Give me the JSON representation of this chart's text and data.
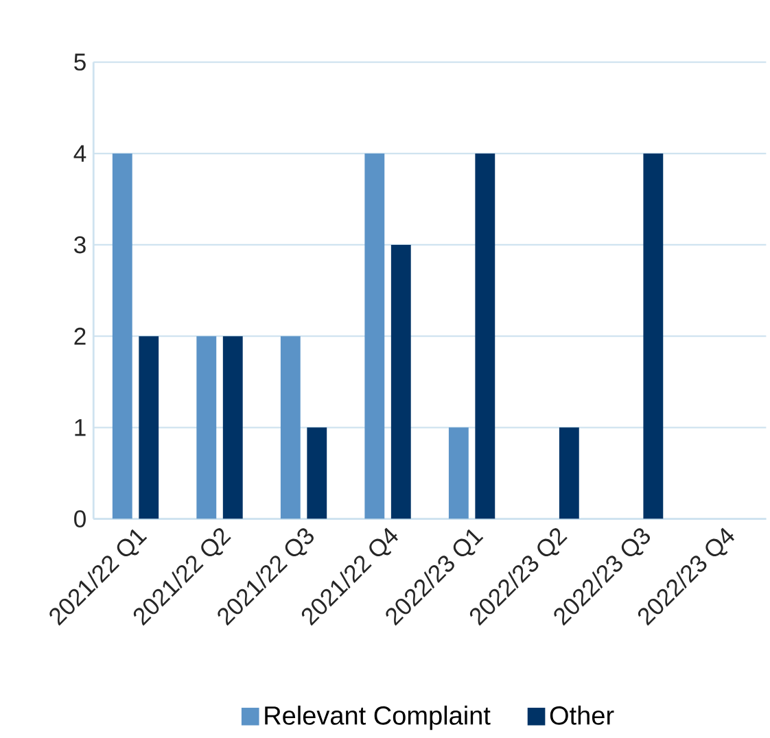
{
  "chart_data": {
    "type": "bar",
    "categories": [
      "2021/22 Q1",
      "2021/22 Q2",
      "2021/22 Q3",
      "2021/22 Q4",
      "2022/23 Q1",
      "2022/23 Q2",
      "2022/23 Q3",
      "2022/23 Q4"
    ],
    "series": [
      {
        "name": "Relevant Complaint",
        "color": "#5b93c7",
        "values": [
          4,
          2,
          2,
          4,
          1,
          0,
          0,
          0
        ]
      },
      {
        "name": "Other",
        "color": "#003366",
        "values": [
          2,
          2,
          1,
          3,
          4,
          1,
          4,
          0
        ]
      }
    ],
    "ylim": [
      0,
      5
    ],
    "yticks": [
      0,
      1,
      2,
      3,
      4,
      5
    ],
    "grid": "y",
    "legend": "bottom"
  }
}
